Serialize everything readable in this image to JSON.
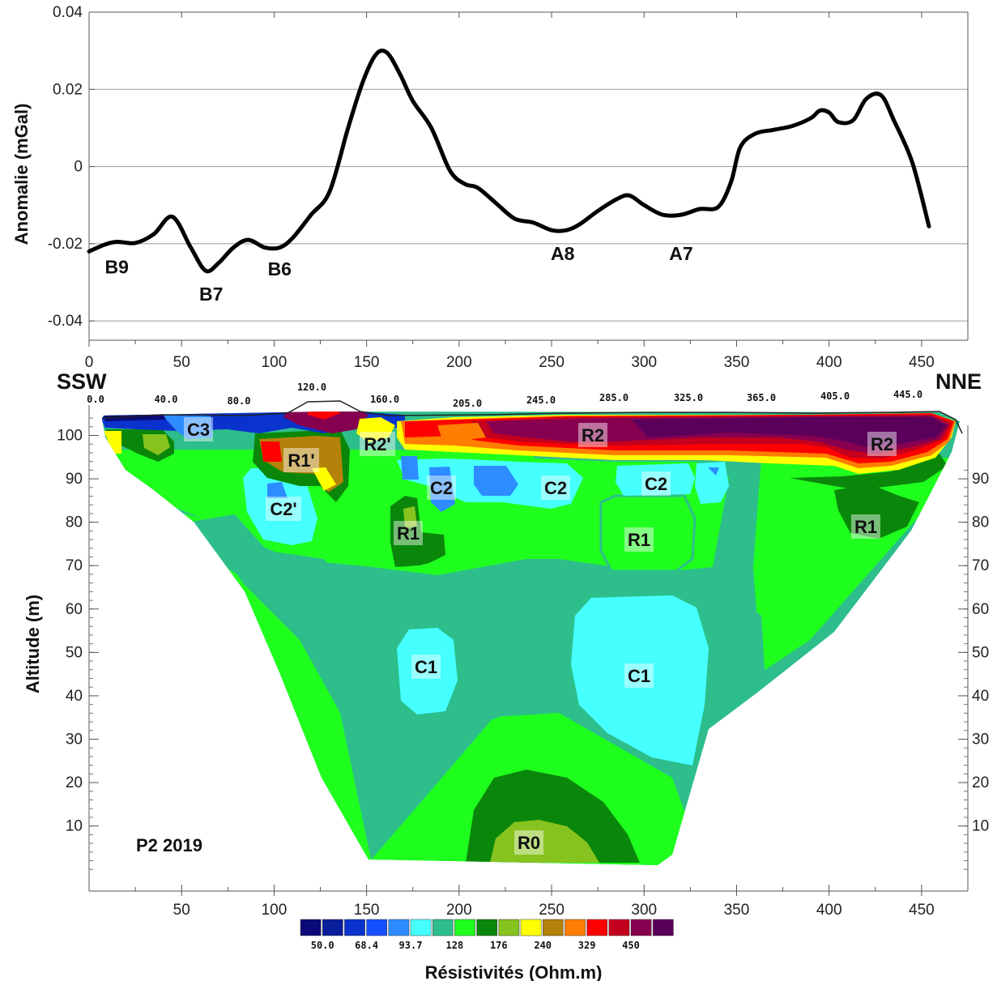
{
  "chart_data": [
    {
      "type": "line",
      "ylabel": "Anomalie (mGal)",
      "xlim": [
        0,
        475
      ],
      "ylim": [
        -0.045,
        0.04
      ],
      "x_ticks": [
        0,
        50,
        100,
        150,
        200,
        250,
        300,
        350,
        400,
        450
      ],
      "y_ticks": [
        {
          "value": 0.04,
          "label": "0.04"
        },
        {
          "value": 0.02,
          "label": "0.02"
        },
        {
          "value": 0,
          "label": "0"
        },
        {
          "value": -0.02,
          "label": "-0.02"
        },
        {
          "value": -0.04,
          "label": "-0.04"
        }
      ],
      "grid": "horizontal",
      "series": [
        {
          "color": "#000000",
          "x": [
            0,
            8,
            15,
            25,
            35,
            45,
            55,
            63,
            70,
            78,
            86,
            95,
            103,
            110,
            120,
            130,
            140,
            148,
            155,
            161,
            168,
            175,
            185,
            195,
            203,
            210,
            220,
            230,
            240,
            250,
            258,
            265,
            275,
            285,
            292,
            300,
            310,
            320,
            330,
            340,
            347,
            352,
            360,
            370,
            380,
            390,
            395,
            400,
            405,
            413,
            420,
            428,
            435,
            445,
            454
          ],
          "values": [
            -0.022,
            -0.0203,
            -0.0195,
            -0.0198,
            -0.0175,
            -0.013,
            -0.021,
            -0.027,
            -0.025,
            -0.021,
            -0.019,
            -0.021,
            -0.021,
            -0.0185,
            -0.0125,
            -0.0065,
            0.01,
            0.022,
            0.029,
            0.0295,
            0.024,
            0.017,
            0.01,
            -0.001,
            -0.0045,
            -0.0055,
            -0.0095,
            -0.0135,
            -0.0145,
            -0.0165,
            -0.0165,
            -0.015,
            -0.0115,
            -0.0085,
            -0.0075,
            -0.01,
            -0.0125,
            -0.0125,
            -0.011,
            -0.0105,
            -0.004,
            0.005,
            0.0085,
            0.0095,
            0.0105,
            0.0125,
            0.0145,
            0.014,
            0.0115,
            0.012,
            0.0175,
            0.0185,
            0.012,
            0.001,
            -0.0155
          ]
        }
      ],
      "annotations": [
        {
          "label": "B9",
          "x": 15,
          "y": -0.026
        },
        {
          "label": "B7",
          "x": 66,
          "y": -0.033
        },
        {
          "label": "B6",
          "x": 103,
          "y": -0.0265
        },
        {
          "label": "A8",
          "x": 256,
          "y": -0.0225
        },
        {
          "label": "A7",
          "x": 320,
          "y": -0.0225
        }
      ]
    },
    {
      "type": "heatmap",
      "ylabel": "Altitude (m)",
      "title": "P2 2019",
      "xlabel": "Résistivités (Ohm.m)",
      "xlim": [
        0,
        475
      ],
      "ylim": [
        -5,
        107
      ],
      "x_ticks": [
        50,
        100,
        150,
        200,
        250,
        300,
        350,
        400,
        450
      ],
      "y_ticks": [
        100,
        90,
        80,
        70,
        60,
        50,
        40,
        30,
        20,
        10
      ],
      "right_y_ticks": [
        90,
        80,
        70,
        60,
        50,
        40,
        30,
        20,
        10
      ],
      "orientation_left": "SSW",
      "orientation_right": "NNE",
      "electrode_labels": [
        "0.0",
        "40.0",
        "80.0",
        "120.0",
        "160.0",
        "205.0",
        "245.0",
        "285.0",
        "325.0",
        "365.0",
        "405.0",
        "445.0"
      ],
      "zone_labels": [
        "C3",
        "R1'",
        "R2'",
        "R2",
        "R2",
        "C2'",
        "C2",
        "C2",
        "C2",
        "R1",
        "R1",
        "R1",
        "C1",
        "C1",
        "R0"
      ],
      "legend": {
        "colors": [
          "#0a0a78",
          "#0a1e9b",
          "#0a32cd",
          "#1450ff",
          "#2d8cff",
          "#46ffff",
          "#2dbe8c",
          "#1eff1e",
          "#0a870a",
          "#87c31e",
          "#ffff00",
          "#b4820a",
          "#ff7d00",
          "#ff0000",
          "#c3001e",
          "#870050",
          "#5a005a"
        ],
        "labels": [
          "50.0",
          "68.4",
          "93.7",
          "128",
          "176",
          "240",
          "329",
          "450"
        ]
      }
    }
  ]
}
